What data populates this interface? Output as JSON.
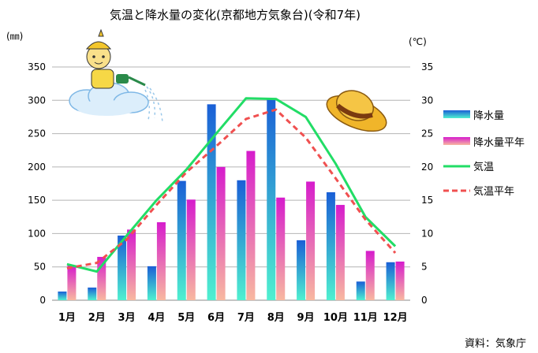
{
  "chart_data": {
    "type": "bar+line",
    "title": "気温と降水量の変化(京都地方気象台)(令和7年)",
    "ylabel_left": "(㎜)",
    "ylabel_right": "(℃)",
    "categories": [
      "1月",
      "2月",
      "3月",
      "4月",
      "5月",
      "6月",
      "7月",
      "8月",
      "9月",
      "10月",
      "11月",
      "12月"
    ],
    "ylim_left": [
      0,
      350
    ],
    "ylim_right": [
      0,
      35
    ],
    "yticks_left": [
      "0",
      "50",
      "100",
      "150",
      "200",
      "250",
      "300",
      "350"
    ],
    "yticks_right": [
      "0",
      "5",
      "10",
      "15",
      "20",
      "25",
      "30",
      "35"
    ],
    "grid": true,
    "legend_position": "right",
    "series": [
      {
        "name": "降水量",
        "kind": "bar",
        "axis": "left",
        "values": [
          13,
          19,
          97,
          51,
          179,
          294,
          180,
          303,
          90,
          162,
          28,
          57
        ],
        "color_top": "#1a5fd6",
        "color_bottom": "#4ff0d0"
      },
      {
        "name": "降水量平年",
        "kind": "bar",
        "axis": "left",
        "values": [
          52,
          65,
          106,
          117,
          151,
          200,
          224,
          154,
          178,
          143,
          74,
          58
        ],
        "color_top": "#d61ccc",
        "color_bottom": "#f8b8a0"
      },
      {
        "name": "気温",
        "kind": "line",
        "axis": "right",
        "values": [
          5.4,
          4.3,
          9.7,
          15.0,
          19.6,
          25.0,
          30.3,
          30.2,
          27.5,
          20.5,
          12.5,
          8.1
        ],
        "color": "#22dd66",
        "dash": "solid"
      },
      {
        "name": "気温平年",
        "kind": "line",
        "axis": "right",
        "values": [
          4.8,
          5.6,
          9.1,
          14.3,
          19.2,
          23.1,
          27.2,
          28.6,
          24.4,
          18.3,
          12.1,
          7.1
        ],
        "color": "#f05050",
        "dash": "dashed"
      }
    ],
    "source": "資料：気象庁"
  }
}
